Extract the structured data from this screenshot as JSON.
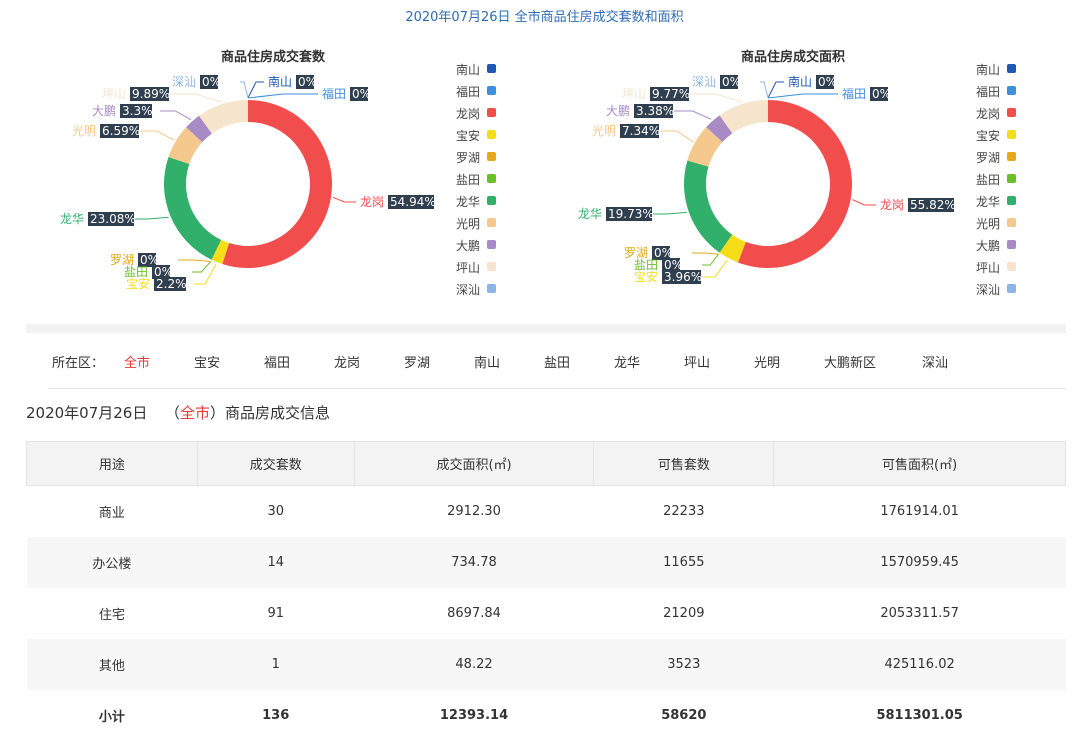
{
  "page_title": "2020年07月26日 全市商品住房成交套数和面积",
  "colors": {
    "南山": "#2058b5",
    "福田": "#3d8fdc",
    "龙岗": "#f24d4d",
    "宝安": "#f5de19",
    "罗湖": "#e6a817",
    "盐田": "#6bbf27",
    "龙华": "#30b06b",
    "光明": "#f5c98e",
    "大鹏": "#a88bc4",
    "坪山": "#f7e4cc",
    "深汕": "#8eb3e6"
  },
  "chart_data": [
    {
      "type": "pie",
      "title": "商品住房成交套数",
      "legend": [
        "南山",
        "福田",
        "龙岗",
        "宝安",
        "罗湖",
        "盐田",
        "龙华",
        "光明",
        "大鹏",
        "坪山",
        "深汕"
      ],
      "slices": [
        {
          "name": "南山",
          "value": 0
        },
        {
          "name": "福田",
          "value": 0
        },
        {
          "name": "龙岗",
          "value": 54.94
        },
        {
          "name": "宝安",
          "value": 2.2
        },
        {
          "name": "罗湖",
          "value": 0
        },
        {
          "name": "盐田",
          "value": 0
        },
        {
          "name": "龙华",
          "value": 23.08
        },
        {
          "name": "光明",
          "value": 6.59
        },
        {
          "name": "大鹏",
          "value": 3.3
        },
        {
          "name": "坪山",
          "value": 9.89
        },
        {
          "name": "深汕",
          "value": 0
        }
      ]
    },
    {
      "type": "pie",
      "title": "商品住房成交面积",
      "legend": [
        "南山",
        "福田",
        "龙岗",
        "宝安",
        "罗湖",
        "盐田",
        "龙华",
        "光明",
        "大鹏",
        "坪山",
        "深汕"
      ],
      "slices": [
        {
          "name": "南山",
          "value": 0
        },
        {
          "name": "福田",
          "value": 0
        },
        {
          "name": "龙岗",
          "value": 55.82
        },
        {
          "name": "宝安",
          "value": 3.96
        },
        {
          "name": "罗湖",
          "value": 0
        },
        {
          "name": "盐田",
          "value": 0
        },
        {
          "name": "龙华",
          "value": 19.73
        },
        {
          "name": "光明",
          "value": 7.34
        },
        {
          "name": "大鹏",
          "value": 3.38
        },
        {
          "name": "坪山",
          "value": 9.77
        },
        {
          "name": "深汕",
          "value": 0
        }
      ]
    }
  ],
  "filter": {
    "label": "所在区：",
    "items": [
      "全市",
      "宝安",
      "福田",
      "龙岗",
      "罗湖",
      "南山",
      "盐田",
      "龙华",
      "坪山",
      "光明",
      "大鹏新区",
      "深汕"
    ],
    "active": "全市"
  },
  "info": {
    "date": "2020年07月26日",
    "open": "（",
    "area": "全市",
    "close": "）",
    "suffix": "商品房成交信息"
  },
  "table": {
    "headers": [
      "用途",
      "成交套数",
      "成交面积(㎡)",
      "可售套数",
      "可售面积(㎡)"
    ],
    "rows": [
      [
        "商业",
        "30",
        "2912.30",
        "22233",
        "1761914.01"
      ],
      [
        "办公楼",
        "14",
        "734.78",
        "11655",
        "1570959.45"
      ],
      [
        "住宅",
        "91",
        "8697.84",
        "21209",
        "2053311.57"
      ],
      [
        "其他",
        "1",
        "48.22",
        "3523",
        "425116.02"
      ]
    ],
    "total": [
      "小计",
      "136",
      "12393.14",
      "58620",
      "5811301.05"
    ]
  }
}
